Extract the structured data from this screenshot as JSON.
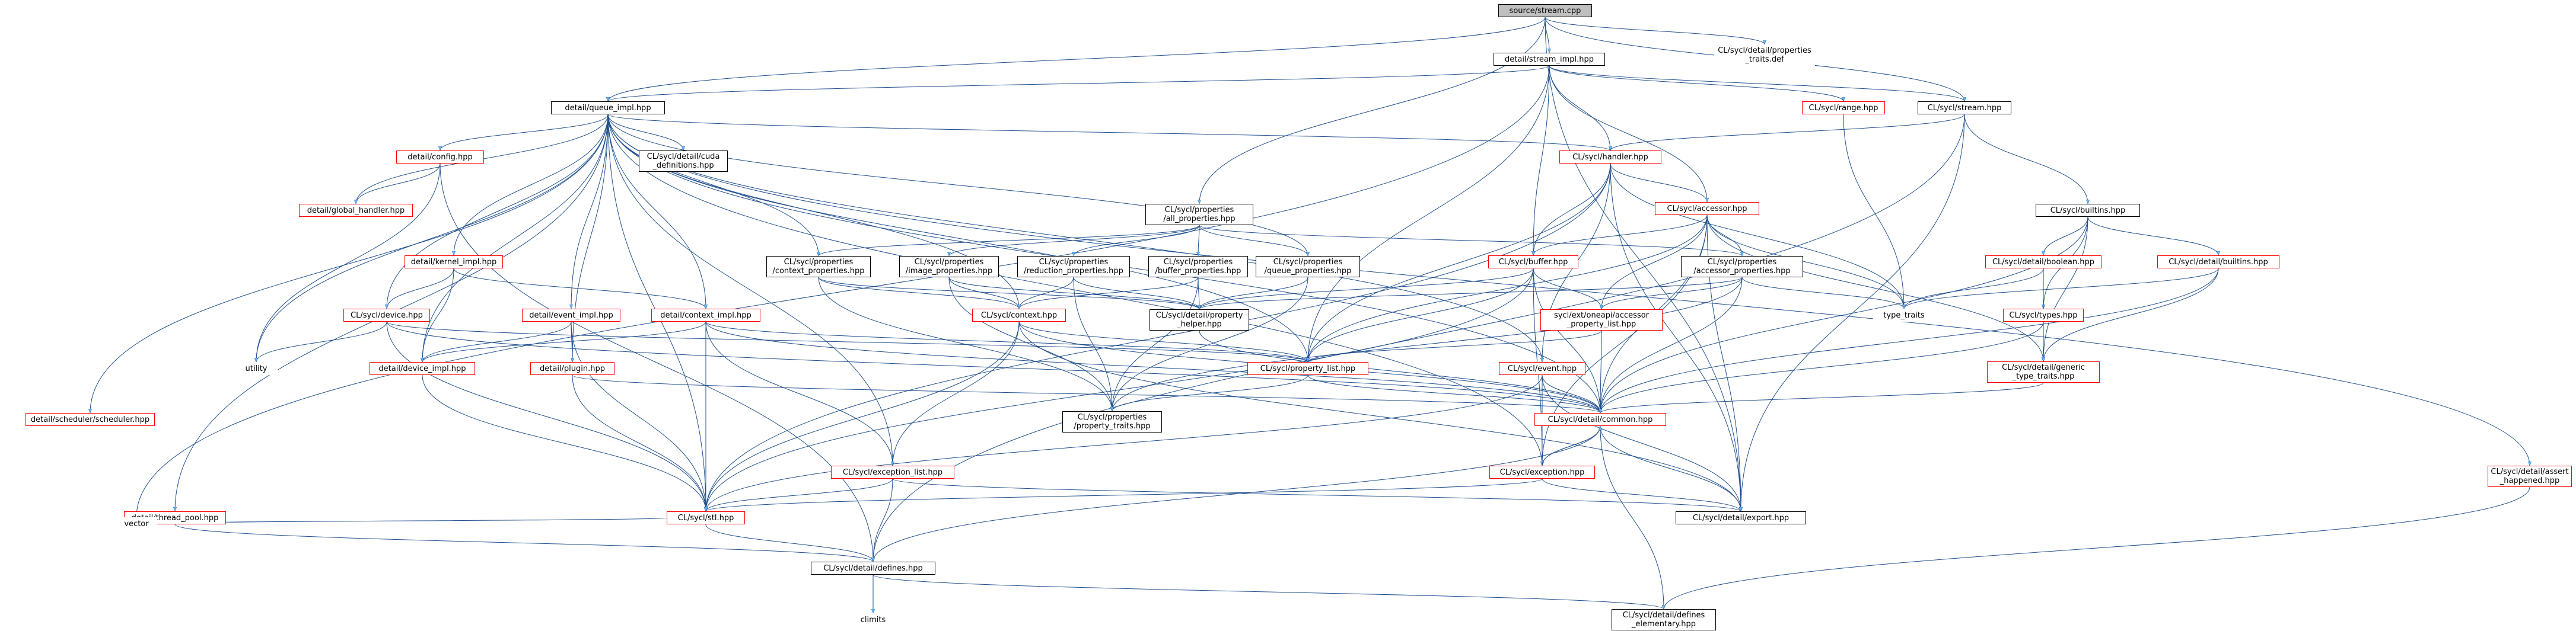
{
  "graph": {
    "nodes": [
      {
        "id": "n0",
        "label": "source/stream.cpp",
        "style": "root"
      },
      {
        "id": "n1",
        "label": "detail/stream_impl.hpp",
        "style": "plain"
      },
      {
        "id": "n2",
        "label": "CL/sycl/detail/properties\n_traits.def",
        "style": "text"
      },
      {
        "id": "n3",
        "label": "detail/queue_impl.hpp",
        "style": "plain"
      },
      {
        "id": "n4",
        "label": "CL/sycl/range.hpp",
        "style": "red"
      },
      {
        "id": "n5",
        "label": "CL/sycl/stream.hpp",
        "style": "plain"
      },
      {
        "id": "n6",
        "label": "detail/config.hpp",
        "style": "red"
      },
      {
        "id": "n7",
        "label": "CL/sycl/detail/cuda\n_definitions.hpp",
        "style": "plain"
      },
      {
        "id": "n8",
        "label": "CL/sycl/handler.hpp",
        "style": "red"
      },
      {
        "id": "n9",
        "label": "detail/global_handler.hpp",
        "style": "red"
      },
      {
        "id": "n10",
        "label": "CL/sycl/properties\n/all_properties.hpp",
        "style": "plain"
      },
      {
        "id": "n11",
        "label": "CL/sycl/accessor.hpp",
        "style": "red"
      },
      {
        "id": "n12",
        "label": "CL/sycl/builtins.hpp",
        "style": "plain"
      },
      {
        "id": "n13",
        "label": "detail/kernel_impl.hpp",
        "style": "red"
      },
      {
        "id": "n14",
        "label": "CL/sycl/properties\n/context_properties.hpp",
        "style": "plain"
      },
      {
        "id": "n15",
        "label": "CL/sycl/properties\n/image_properties.hpp",
        "style": "plain"
      },
      {
        "id": "n16",
        "label": "CL/sycl/properties\n/reduction_properties.hpp",
        "style": "plain"
      },
      {
        "id": "n17",
        "label": "CL/sycl/properties\n/buffer_properties.hpp",
        "style": "plain"
      },
      {
        "id": "n18",
        "label": "CL/sycl/properties\n/queue_properties.hpp",
        "style": "plain"
      },
      {
        "id": "n19",
        "label": "CL/sycl/buffer.hpp",
        "style": "red"
      },
      {
        "id": "n20",
        "label": "CL/sycl/properties\n/accessor_properties.hpp",
        "style": "plain"
      },
      {
        "id": "n21",
        "label": "CL/sycl/detail/boolean.hpp",
        "style": "red"
      },
      {
        "id": "n22",
        "label": "CL/sycl/detail/builtins.hpp",
        "style": "red"
      },
      {
        "id": "n23",
        "label": "type_traits",
        "style": "text"
      },
      {
        "id": "n24",
        "label": "CL/sycl/device.hpp",
        "style": "red"
      },
      {
        "id": "n25",
        "label": "detail/event_impl.hpp",
        "style": "red"
      },
      {
        "id": "n26",
        "label": "detail/context_impl.hpp",
        "style": "red"
      },
      {
        "id": "n27",
        "label": "CL/sycl/context.hpp",
        "style": "red"
      },
      {
        "id": "n28",
        "label": "CL/sycl/detail/property\n_helper.hpp",
        "style": "plain"
      },
      {
        "id": "n29",
        "label": "sycl/ext/oneapi/accessor\n_property_list.hpp",
        "style": "red"
      },
      {
        "id": "n30",
        "label": "CL/sycl/types.hpp",
        "style": "red"
      },
      {
        "id": "n31",
        "label": "utility",
        "style": "text"
      },
      {
        "id": "n32",
        "label": "detail/device_impl.hpp",
        "style": "red"
      },
      {
        "id": "n33",
        "label": "detail/plugin.hpp",
        "style": "red"
      },
      {
        "id": "n34",
        "label": "CL/sycl/property_list.hpp",
        "style": "red"
      },
      {
        "id": "n35",
        "label": "CL/sycl/event.hpp",
        "style": "red"
      },
      {
        "id": "n36",
        "label": "CL/sycl/detail/generic\n_type_traits.hpp",
        "style": "red"
      },
      {
        "id": "n37",
        "label": "detail/scheduler/scheduler.hpp",
        "style": "red"
      },
      {
        "id": "n38",
        "label": "CL/sycl/properties\n/property_traits.hpp",
        "style": "plain"
      },
      {
        "id": "n39",
        "label": "CL/sycl/detail/common.hpp",
        "style": "red"
      },
      {
        "id": "n40",
        "label": "CL/sycl/exception_list.hpp",
        "style": "red"
      },
      {
        "id": "n41",
        "label": "CL/sycl/exception.hpp",
        "style": "red"
      },
      {
        "id": "n42",
        "label": "CL/sycl/detail/assert\n_happened.hpp",
        "style": "red"
      },
      {
        "id": "n43",
        "label": "detail/thread_pool.hpp",
        "style": "red"
      },
      {
        "id": "n44",
        "label": "CL/sycl/stl.hpp",
        "style": "red"
      },
      {
        "id": "n45",
        "label": "CL/sycl/detail/export.hpp",
        "style": "plain"
      },
      {
        "id": "n46",
        "label": "vector",
        "style": "text"
      },
      {
        "id": "n47",
        "label": "CL/sycl/detail/defines.hpp",
        "style": "plain"
      },
      {
        "id": "n48",
        "label": "climits",
        "style": "text"
      },
      {
        "id": "n49",
        "label": "CL/sycl/detail/defines\n_elementary.hpp",
        "style": "plain"
      }
    ],
    "edges": [
      [
        "n0",
        "n1"
      ],
      [
        "n0",
        "n2"
      ],
      [
        "n0",
        "n3"
      ],
      [
        "n0",
        "n5"
      ],
      [
        "n0",
        "n10"
      ],
      [
        "n0",
        "n45"
      ],
      [
        "n1",
        "n3"
      ],
      [
        "n1",
        "n4"
      ],
      [
        "n1",
        "n5"
      ],
      [
        "n1",
        "n8"
      ],
      [
        "n1",
        "n11"
      ],
      [
        "n1",
        "n19"
      ],
      [
        "n1",
        "n34"
      ],
      [
        "n1",
        "n46"
      ],
      [
        "n3",
        "n6"
      ],
      [
        "n3",
        "n7"
      ],
      [
        "n3",
        "n8"
      ],
      [
        "n3",
        "n9"
      ],
      [
        "n3",
        "n13"
      ],
      [
        "n3",
        "n14"
      ],
      [
        "n3",
        "n18"
      ],
      [
        "n3",
        "n24"
      ],
      [
        "n3",
        "n25"
      ],
      [
        "n3",
        "n26"
      ],
      [
        "n3",
        "n27"
      ],
      [
        "n3",
        "n32"
      ],
      [
        "n3",
        "n33"
      ],
      [
        "n3",
        "n35"
      ],
      [
        "n3",
        "n37"
      ],
      [
        "n3",
        "n39"
      ],
      [
        "n3",
        "n40"
      ],
      [
        "n3",
        "n41"
      ],
      [
        "n3",
        "n42"
      ],
      [
        "n3",
        "n43"
      ],
      [
        "n3",
        "n44"
      ],
      [
        "n3",
        "n31"
      ],
      [
        "n3",
        "n34"
      ],
      [
        "n4",
        "n23"
      ],
      [
        "n5",
        "n8"
      ],
      [
        "n5",
        "n12"
      ],
      [
        "n5",
        "n45"
      ],
      [
        "n5",
        "n47"
      ],
      [
        "n6",
        "n9"
      ],
      [
        "n6",
        "n31"
      ],
      [
        "n6",
        "n47"
      ],
      [
        "n8",
        "n11"
      ],
      [
        "n8",
        "n19"
      ],
      [
        "n8",
        "n23"
      ],
      [
        "n8",
        "n34"
      ],
      [
        "n8",
        "n35"
      ],
      [
        "n8",
        "n44"
      ],
      [
        "n8",
        "n45"
      ],
      [
        "n10",
        "n14"
      ],
      [
        "n10",
        "n15"
      ],
      [
        "n10",
        "n16"
      ],
      [
        "n10",
        "n17"
      ],
      [
        "n10",
        "n18"
      ],
      [
        "n10",
        "n20"
      ],
      [
        "n11",
        "n19"
      ],
      [
        "n11",
        "n20"
      ],
      [
        "n11",
        "n23"
      ],
      [
        "n11",
        "n29"
      ],
      [
        "n11",
        "n34"
      ],
      [
        "n11",
        "n36"
      ],
      [
        "n11",
        "n39"
      ],
      [
        "n11",
        "n41"
      ],
      [
        "n11",
        "n45"
      ],
      [
        "n12",
        "n21"
      ],
      [
        "n12",
        "n22"
      ],
      [
        "n12",
        "n30"
      ],
      [
        "n12",
        "n36"
      ],
      [
        "n12",
        "n39"
      ],
      [
        "n13",
        "n24"
      ],
      [
        "n13",
        "n26"
      ],
      [
        "n13",
        "n32"
      ],
      [
        "n14",
        "n27"
      ],
      [
        "n14",
        "n28"
      ],
      [
        "n14",
        "n38"
      ],
      [
        "n15",
        "n27"
      ],
      [
        "n15",
        "n28"
      ],
      [
        "n15",
        "n38"
      ],
      [
        "n16",
        "n27"
      ],
      [
        "n16",
        "n28"
      ],
      [
        "n16",
        "n38"
      ],
      [
        "n17",
        "n27"
      ],
      [
        "n17",
        "n28"
      ],
      [
        "n17",
        "n38"
      ],
      [
        "n18",
        "n28"
      ],
      [
        "n18",
        "n38"
      ],
      [
        "n19",
        "n28"
      ],
      [
        "n19",
        "n29"
      ],
      [
        "n19",
        "n34"
      ],
      [
        "n19",
        "n39"
      ],
      [
        "n19",
        "n41"
      ],
      [
        "n19",
        "n44"
      ],
      [
        "n20",
        "n23"
      ],
      [
        "n20",
        "n28"
      ],
      [
        "n20",
        "n29"
      ],
      [
        "n20",
        "n38"
      ],
      [
        "n20",
        "n39"
      ],
      [
        "n21",
        "n23"
      ],
      [
        "n21",
        "n30"
      ],
      [
        "n21",
        "n36"
      ],
      [
        "n22",
        "n23"
      ],
      [
        "n22",
        "n36"
      ],
      [
        "n22",
        "n39"
      ],
      [
        "n24",
        "n31"
      ],
      [
        "n24",
        "n34"
      ],
      [
        "n24",
        "n39"
      ],
      [
        "n24",
        "n44"
      ],
      [
        "n25",
        "n32"
      ],
      [
        "n25",
        "n33"
      ],
      [
        "n25",
        "n44"
      ],
      [
        "n26",
        "n32"
      ],
      [
        "n26",
        "n34"
      ],
      [
        "n26",
        "n39"
      ],
      [
        "n26",
        "n40"
      ],
      [
        "n26",
        "n44"
      ],
      [
        "n27",
        "n34"
      ],
      [
        "n27",
        "n39"
      ],
      [
        "n27",
        "n40"
      ],
      [
        "n27",
        "n44"
      ],
      [
        "n27",
        "n45"
      ],
      [
        "n28",
        "n39"
      ],
      [
        "n29",
        "n34"
      ],
      [
        "n29",
        "n39"
      ],
      [
        "n30",
        "n36"
      ],
      [
        "n30",
        "n39"
      ],
      [
        "n32",
        "n44"
      ],
      [
        "n33",
        "n39"
      ],
      [
        "n33",
        "n44"
      ],
      [
        "n34",
        "n38"
      ],
      [
        "n34",
        "n39"
      ],
      [
        "n35",
        "n39"
      ],
      [
        "n35",
        "n41"
      ],
      [
        "n35",
        "n44"
      ],
      [
        "n35",
        "n45"
      ],
      [
        "n36",
        "n39"
      ],
      [
        "n39",
        "n41"
      ],
      [
        "n39",
        "n45"
      ],
      [
        "n39",
        "n47"
      ],
      [
        "n39",
        "n49"
      ],
      [
        "n40",
        "n44"
      ],
      [
        "n40",
        "n45"
      ],
      [
        "n40",
        "n47"
      ],
      [
        "n41",
        "n39"
      ],
      [
        "n41",
        "n44"
      ],
      [
        "n41",
        "n45"
      ],
      [
        "n42",
        "n49"
      ],
      [
        "n43",
        "n46"
      ],
      [
        "n43",
        "n47"
      ],
      [
        "n44",
        "n46"
      ],
      [
        "n44",
        "n47"
      ],
      [
        "n47",
        "n48"
      ],
      [
        "n47",
        "n49"
      ]
    ]
  }
}
